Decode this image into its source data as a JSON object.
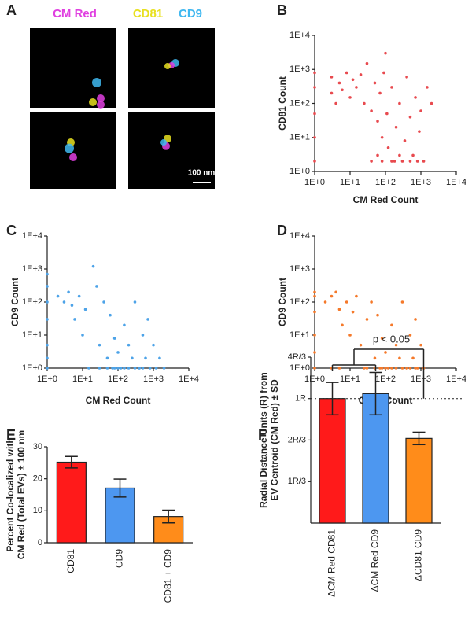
{
  "image_panel": {
    "label": "A",
    "channels": [
      {
        "name": "CM Red",
        "color": "#e040e0"
      },
      {
        "name": "CD81",
        "color": "#e8e020"
      },
      {
        "name": "CD9",
        "color": "#40b8f0"
      }
    ],
    "scale_bar": "100 nm"
  },
  "chart_data": [
    {
      "type": "scatter",
      "label": "B",
      "xlabel": "CM Red Count",
      "ylabel": "CD81 Count",
      "color": "#e84a4f",
      "log": true,
      "xlim": [
        1,
        10000
      ],
      "ylim": [
        1,
        10000
      ],
      "xticks": [
        {
          "value": 1,
          "label": "1E+0"
        },
        {
          "value": 10,
          "label": "1E+1"
        },
        {
          "value": 100,
          "label": "1E+2"
        },
        {
          "value": 1000,
          "label": "1E+3"
        },
        {
          "value": 10000,
          "label": "1E+4"
        }
      ],
      "yticks": [
        {
          "value": 1,
          "label": "1E+0"
        },
        {
          "value": 10,
          "label": "1E+1"
        },
        {
          "value": 100,
          "label": "1E+2"
        },
        {
          "value": 1000,
          "label": "1E+3"
        },
        {
          "value": 10000,
          "label": "1E+4"
        }
      ],
      "x": [
        1,
        1,
        1,
        1,
        1,
        3,
        3,
        4,
        5,
        6,
        8,
        10,
        12,
        15,
        20,
        25,
        30,
        40,
        50,
        60,
        70,
        80,
        90,
        100,
        110,
        120,
        150,
        180,
        200,
        250,
        300,
        350,
        400,
        500,
        600,
        700,
        800,
        900,
        1000,
        1200,
        1500,
        2000,
        150,
        80,
        40,
        250,
        500,
        60
      ],
      "values": [
        2,
        10,
        50,
        300,
        800,
        200,
        600,
        100,
        400,
        250,
        800,
        150,
        500,
        300,
        700,
        100,
        1500,
        60,
        400,
        30,
        200,
        10,
        800,
        3000,
        50,
        5,
        300,
        2,
        20,
        100,
        2,
        8,
        600,
        40,
        3,
        150,
        2,
        15,
        60,
        2,
        300,
        100,
        2,
        2,
        2,
        3,
        2,
        3
      ]
    },
    {
      "type": "scatter",
      "label": "C",
      "xlabel": "CM Red Count",
      "ylabel": "CD9 Count",
      "color": "#4da3e8",
      "log": true,
      "xlim": [
        1,
        10000
      ],
      "ylim": [
        1,
        10000
      ],
      "xticks": [
        {
          "value": 1,
          "label": "1E+0"
        },
        {
          "value": 10,
          "label": "1E+1"
        },
        {
          "value": 100,
          "label": "1E+2"
        },
        {
          "value": 1000,
          "label": "1E+3"
        },
        {
          "value": 10000,
          "label": "1E+4"
        }
      ],
      "yticks": [
        {
          "value": 1,
          "label": "1E+0"
        },
        {
          "value": 10,
          "label": "1E+1"
        },
        {
          "value": 100,
          "label": "1E+2"
        },
        {
          "value": 1000,
          "label": "1E+3"
        },
        {
          "value": 10000,
          "label": "1E+4"
        }
      ],
      "x": [
        1,
        1,
        1,
        1,
        1,
        1,
        2,
        3,
        4,
        5,
        6,
        8,
        10,
        12,
        15,
        20,
        25,
        30,
        40,
        50,
        60,
        70,
        80,
        100,
        120,
        150,
        200,
        250,
        300,
        400,
        500,
        600,
        700,
        800,
        1000,
        1200,
        1500,
        2000,
        50,
        80,
        100,
        150,
        200,
        300,
        400,
        500,
        30,
        1
      ],
      "values": [
        1,
        2,
        5,
        30,
        100,
        300,
        150,
        100,
        200,
        80,
        30,
        150,
        10,
        60,
        1,
        1200,
        300,
        5,
        100,
        2,
        40,
        1,
        8,
        3,
        1,
        20,
        5,
        2,
        100,
        1,
        10,
        2,
        30,
        1,
        5,
        1,
        2,
        1,
        1,
        1,
        1,
        1,
        1,
        1,
        1,
        1,
        1,
        700
      ]
    },
    {
      "type": "scatter",
      "label": "D",
      "xlabel": "CD81 Count",
      "ylabel": "CD9 Count",
      "color": "#f5792a",
      "log": true,
      "xlim": [
        1,
        10000
      ],
      "ylim": [
        1,
        10000
      ],
      "xticks": [
        {
          "value": 1,
          "label": "1E+0"
        },
        {
          "value": 10,
          "label": "1E+1"
        },
        {
          "value": 100,
          "label": "1E+2"
        },
        {
          "value": 1000,
          "label": "1E+3"
        },
        {
          "value": 10000,
          "label": "1E+4"
        }
      ],
      "yticks": [
        {
          "value": 1,
          "label": "1E+0"
        },
        {
          "value": 10,
          "label": "1E+1"
        },
        {
          "value": 100,
          "label": "1E+2"
        },
        {
          "value": 1000,
          "label": "1E+3"
        },
        {
          "value": 10000,
          "label": "1E+4"
        }
      ],
      "x": [
        1,
        1,
        1,
        1,
        1,
        1,
        2,
        3,
        4,
        5,
        6,
        8,
        10,
        12,
        15,
        20,
        25,
        30,
        40,
        50,
        60,
        70,
        80,
        100,
        120,
        150,
        200,
        250,
        300,
        400,
        500,
        600,
        700,
        800,
        1000,
        1200,
        30,
        50,
        80,
        100,
        150,
        200,
        300,
        400,
        500,
        700,
        5,
        3
      ],
      "values": [
        1,
        3,
        10,
        50,
        150,
        200,
        100,
        150,
        200,
        60,
        20,
        100,
        10,
        50,
        150,
        5,
        1,
        30,
        100,
        2,
        40,
        1,
        8,
        3,
        1,
        20,
        5,
        2,
        100,
        1,
        10,
        2,
        30,
        1,
        5,
        1,
        1,
        1,
        1,
        1,
        1,
        1,
        1,
        1,
        1,
        1,
        1,
        1
      ]
    },
    {
      "type": "bar",
      "label": "E",
      "ylabel": [
        "Percent Co-localized with",
        "CM Red (Total EVs) ± 100 nm"
      ],
      "categories": [
        "CD81",
        "CD9",
        "CD81 + CD9"
      ],
      "values": [
        25.2,
        17.1,
        8.2
      ],
      "errors": [
        1.8,
        2.8,
        2.0
      ],
      "colors": [
        "#ff1a1a",
        "#4d97f0",
        "#ff8c1a"
      ],
      "ylim": [
        0,
        30
      ],
      "yticks": [
        0,
        10,
        20,
        30
      ]
    },
    {
      "type": "bar",
      "label": "F",
      "ylabel": [
        "Radial Distance Units (R) from",
        "EV Centroid (CM Red) ± SD"
      ],
      "categories": [
        "ΔCM Red CD81",
        "ΔCM Red CD9",
        "ΔCD81 CD9"
      ],
      "values": [
        1.0,
        1.04,
        0.68
      ],
      "errors": [
        0.13,
        0.17,
        0.05
      ],
      "colors": [
        "#ff1a1a",
        "#4d97f0",
        "#ff8c1a"
      ],
      "ylim": [
        0,
        1.333
      ],
      "yticks": [
        {
          "value": 0.333,
          "label": "1R/3"
        },
        {
          "value": 0.667,
          "label": "2R/3"
        },
        {
          "value": 1,
          "label": "1R"
        },
        {
          "value": 1.333,
          "label": "4R/3"
        }
      ],
      "reference_line": 1,
      "annotation": "p < 0.05"
    }
  ]
}
